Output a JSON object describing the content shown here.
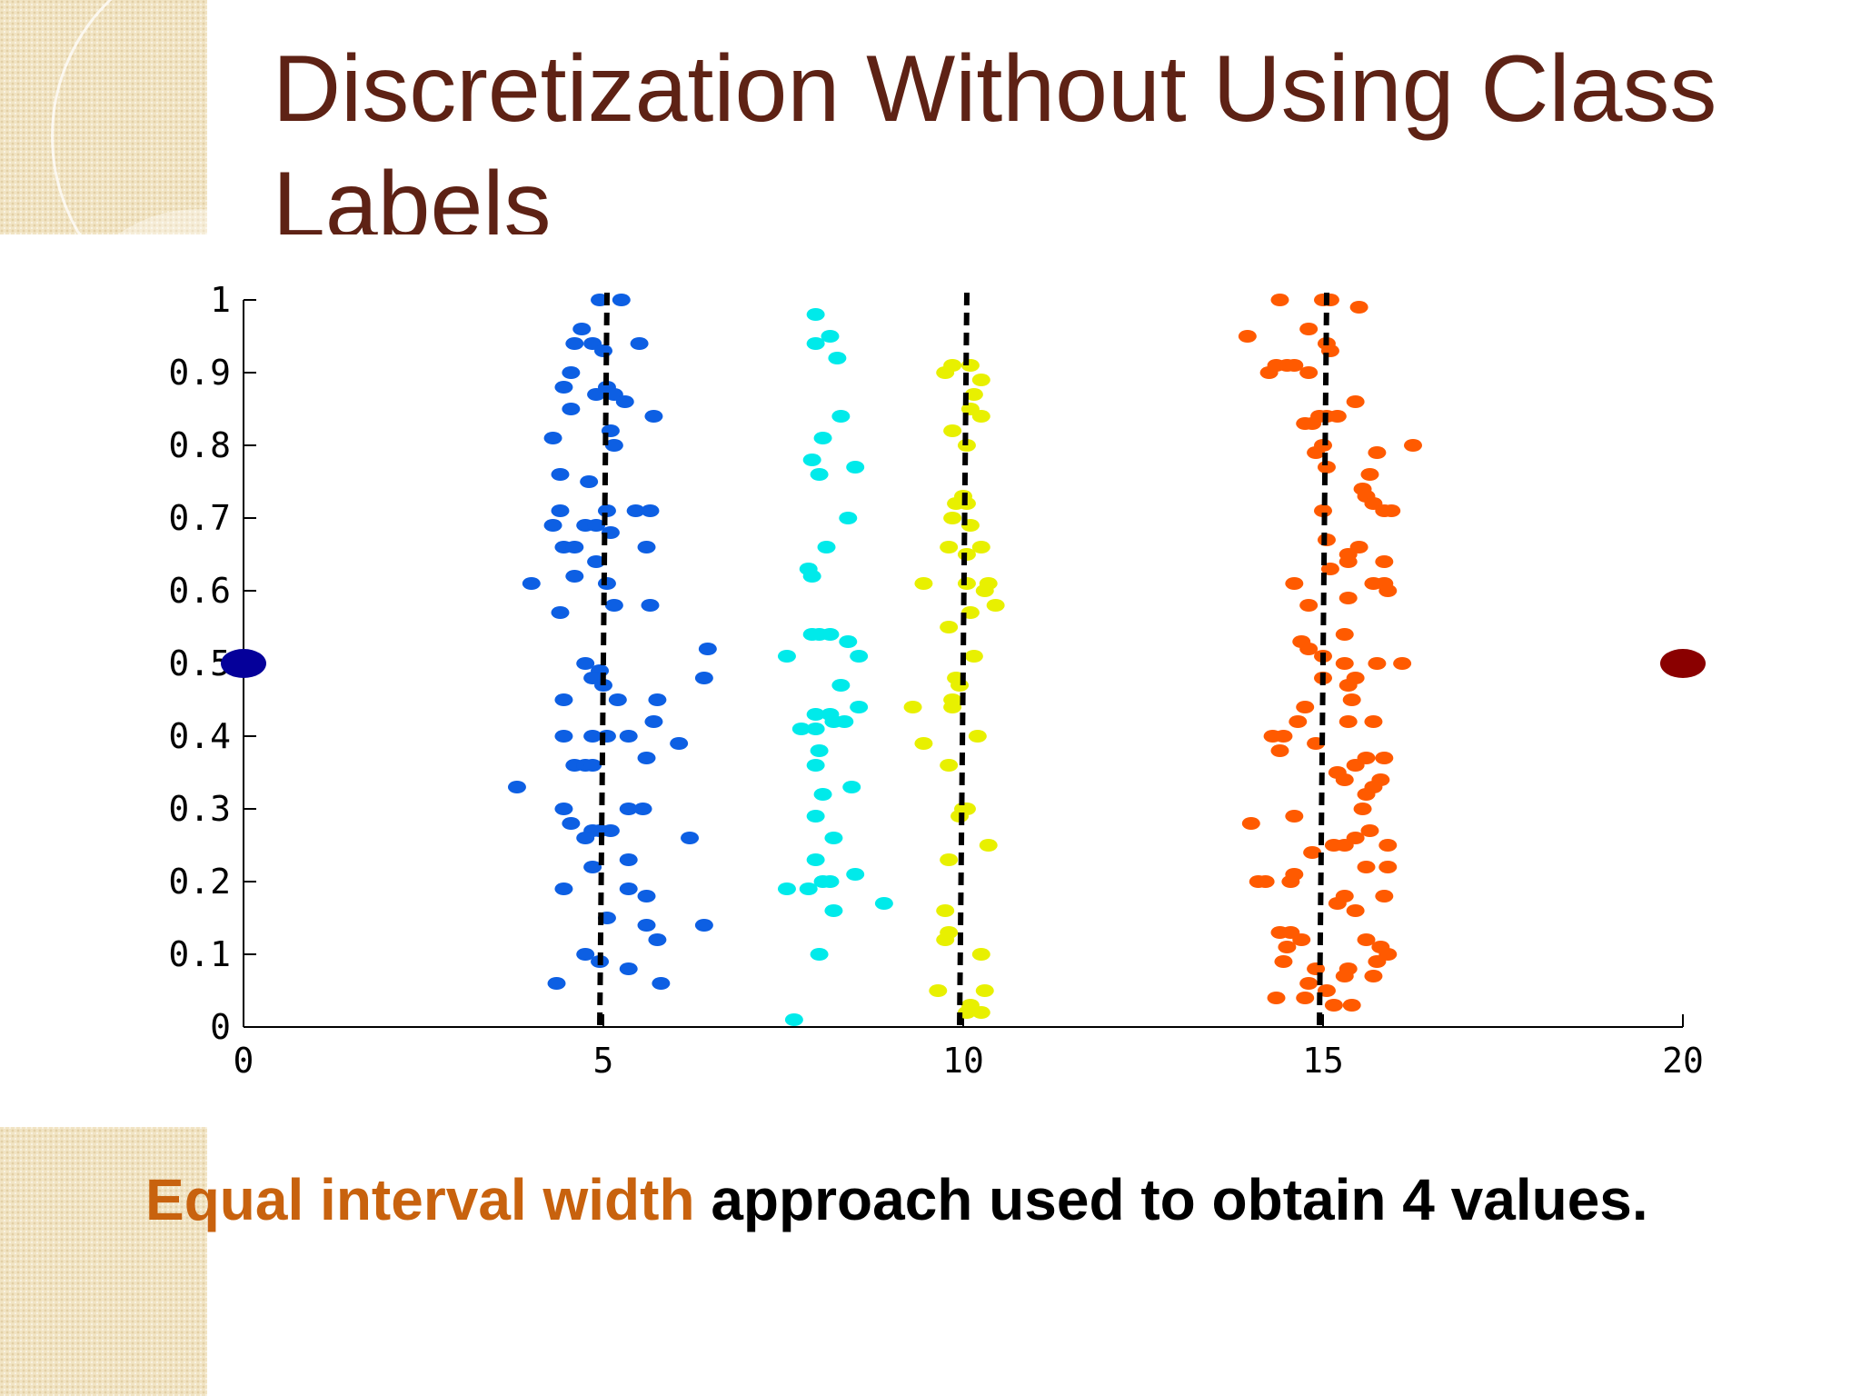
{
  "slide": {
    "title": "Discretization Without Using Class Labels",
    "caption_highlight": "Equal interval width",
    "caption_rest": " approach used to obtain 4 values."
  },
  "colors": {
    "title": "#5e2215",
    "highlight": "#c8620e",
    "cluster1": "#0d5fe3",
    "cluster2": "#00eaea",
    "cluster3": "#e8f000",
    "cluster4": "#ff5a00",
    "endpoint_left": "#05009a",
    "endpoint_right": "#8a0000"
  },
  "chart_data": {
    "type": "scatter",
    "title": "",
    "xlabel": "",
    "ylabel": "",
    "xlim": [
      0,
      20
    ],
    "ylim": [
      0,
      1
    ],
    "grid": false,
    "x_ticks": [
      0,
      5,
      10,
      15,
      20
    ],
    "y_ticks": [
      0,
      0.1,
      0.2,
      0.3,
      0.4,
      0.5,
      0.6,
      0.7,
      0.8,
      0.9,
      1
    ],
    "x_tick_labels": [
      "0",
      "5",
      "10",
      "15",
      "20"
    ],
    "y_tick_labels": [
      "0",
      "0.1",
      "0.2",
      "0.3",
      "0.4",
      "0.5",
      "0.6",
      "0.7",
      "0.8",
      "0.9",
      "1"
    ],
    "bin_boundaries": [
      5,
      10,
      15
    ],
    "endpoints": [
      {
        "x": 0,
        "y": 0.5,
        "color": "#05009a"
      },
      {
        "x": 20,
        "y": 0.5,
        "color": "#8a0000"
      }
    ],
    "series": [
      {
        "color": "#0d5fe3",
        "points": [
          [
            4.95,
            1.0
          ],
          [
            5.25,
            1.0
          ],
          [
            4.7,
            0.96
          ],
          [
            4.85,
            0.94
          ],
          [
            5.0,
            0.93
          ],
          [
            4.6,
            0.94
          ],
          [
            5.5,
            0.94
          ],
          [
            4.55,
            0.9
          ],
          [
            5.05,
            0.88
          ],
          [
            4.9,
            0.87
          ],
          [
            5.15,
            0.87
          ],
          [
            4.45,
            0.88
          ],
          [
            4.55,
            0.85
          ],
          [
            5.3,
            0.86
          ],
          [
            5.7,
            0.84
          ],
          [
            5.1,
            0.82
          ],
          [
            4.3,
            0.81
          ],
          [
            5.15,
            0.8
          ],
          [
            4.4,
            0.76
          ],
          [
            4.8,
            0.75
          ],
          [
            4.4,
            0.71
          ],
          [
            5.05,
            0.71
          ],
          [
            5.45,
            0.71
          ],
          [
            5.65,
            0.71
          ],
          [
            4.3,
            0.69
          ],
          [
            4.75,
            0.69
          ],
          [
            4.9,
            0.69
          ],
          [
            5.1,
            0.68
          ],
          [
            4.45,
            0.66
          ],
          [
            4.6,
            0.66
          ],
          [
            5.6,
            0.66
          ],
          [
            4.9,
            0.64
          ],
          [
            4.6,
            0.62
          ],
          [
            5.05,
            0.61
          ],
          [
            4.0,
            0.61
          ],
          [
            5.15,
            0.58
          ],
          [
            5.65,
            0.58
          ],
          [
            4.4,
            0.57
          ],
          [
            6.45,
            0.52
          ],
          [
            4.75,
            0.5
          ],
          [
            4.95,
            0.49
          ],
          [
            4.85,
            0.48
          ],
          [
            5.0,
            0.47
          ],
          [
            6.4,
            0.48
          ],
          [
            4.45,
            0.45
          ],
          [
            5.2,
            0.45
          ],
          [
            5.75,
            0.45
          ],
          [
            4.45,
            0.4
          ],
          [
            4.85,
            0.4
          ],
          [
            5.05,
            0.4
          ],
          [
            5.35,
            0.4
          ],
          [
            5.7,
            0.42
          ],
          [
            6.05,
            0.39
          ],
          [
            4.6,
            0.36
          ],
          [
            4.75,
            0.36
          ],
          [
            4.85,
            0.36
          ],
          [
            5.6,
            0.37
          ],
          [
            3.8,
            0.33
          ],
          [
            4.45,
            0.3
          ],
          [
            5.35,
            0.3
          ],
          [
            5.55,
            0.3
          ],
          [
            4.55,
            0.28
          ],
          [
            4.85,
            0.27
          ],
          [
            4.95,
            0.27
          ],
          [
            5.1,
            0.27
          ],
          [
            4.75,
            0.26
          ],
          [
            6.2,
            0.26
          ],
          [
            4.85,
            0.22
          ],
          [
            5.35,
            0.23
          ],
          [
            4.45,
            0.19
          ],
          [
            5.35,
            0.19
          ],
          [
            5.6,
            0.18
          ],
          [
            5.05,
            0.15
          ],
          [
            5.6,
            0.14
          ],
          [
            6.4,
            0.14
          ],
          [
            5.75,
            0.12
          ],
          [
            4.75,
            0.1
          ],
          [
            4.95,
            0.09
          ],
          [
            5.35,
            0.08
          ],
          [
            5.8,
            0.06
          ],
          [
            4.35,
            0.06
          ]
        ]
      },
      {
        "color": "#00eaea",
        "points": [
          [
            7.95,
            0.98
          ],
          [
            8.15,
            0.95
          ],
          [
            7.95,
            0.94
          ],
          [
            8.25,
            0.92
          ],
          [
            8.3,
            0.84
          ],
          [
            8.05,
            0.81
          ],
          [
            7.9,
            0.78
          ],
          [
            8.5,
            0.77
          ],
          [
            8.0,
            0.76
          ],
          [
            8.4,
            0.7
          ],
          [
            8.1,
            0.66
          ],
          [
            7.85,
            0.63
          ],
          [
            7.9,
            0.62
          ],
          [
            7.9,
            0.54
          ],
          [
            8.0,
            0.54
          ],
          [
            8.15,
            0.54
          ],
          [
            8.4,
            0.53
          ],
          [
            8.55,
            0.51
          ],
          [
            7.55,
            0.51
          ],
          [
            8.3,
            0.47
          ],
          [
            7.95,
            0.43
          ],
          [
            8.15,
            0.43
          ],
          [
            8.55,
            0.44
          ],
          [
            8.35,
            0.42
          ],
          [
            7.75,
            0.41
          ],
          [
            7.95,
            0.41
          ],
          [
            8.2,
            0.42
          ],
          [
            8.0,
            0.38
          ],
          [
            7.95,
            0.36
          ],
          [
            8.45,
            0.33
          ],
          [
            8.05,
            0.32
          ],
          [
            7.95,
            0.29
          ],
          [
            8.2,
            0.26
          ],
          [
            7.95,
            0.23
          ],
          [
            8.5,
            0.21
          ],
          [
            7.55,
            0.19
          ],
          [
            8.05,
            0.2
          ],
          [
            8.15,
            0.2
          ],
          [
            7.85,
            0.19
          ],
          [
            8.9,
            0.17
          ],
          [
            8.2,
            0.16
          ],
          [
            8.0,
            0.1
          ],
          [
            7.65,
            0.01
          ]
        ]
      },
      {
        "color": "#e8f000",
        "points": [
          [
            9.85,
            0.91
          ],
          [
            10.1,
            0.91
          ],
          [
            9.75,
            0.9
          ],
          [
            10.25,
            0.89
          ],
          [
            10.15,
            0.87
          ],
          [
            10.1,
            0.85
          ],
          [
            10.25,
            0.84
          ],
          [
            9.85,
            0.82
          ],
          [
            10.05,
            0.8
          ],
          [
            10.0,
            0.73
          ],
          [
            9.9,
            0.72
          ],
          [
            10.05,
            0.72
          ],
          [
            9.85,
            0.7
          ],
          [
            10.1,
            0.69
          ],
          [
            9.8,
            0.66
          ],
          [
            10.25,
            0.66
          ],
          [
            10.05,
            0.65
          ],
          [
            10.05,
            0.61
          ],
          [
            9.45,
            0.61
          ],
          [
            10.35,
            0.61
          ],
          [
            10.3,
            0.6
          ],
          [
            10.45,
            0.58
          ],
          [
            10.1,
            0.57
          ],
          [
            9.8,
            0.55
          ],
          [
            10.15,
            0.51
          ],
          [
            9.9,
            0.48
          ],
          [
            9.95,
            0.47
          ],
          [
            9.85,
            0.45
          ],
          [
            9.85,
            0.44
          ],
          [
            9.3,
            0.44
          ],
          [
            10.2,
            0.4
          ],
          [
            9.45,
            0.39
          ],
          [
            9.8,
            0.36
          ],
          [
            10.05,
            0.3
          ],
          [
            10.0,
            0.3
          ],
          [
            9.95,
            0.29
          ],
          [
            10.35,
            0.25
          ],
          [
            9.8,
            0.23
          ],
          [
            9.75,
            0.16
          ],
          [
            9.8,
            0.13
          ],
          [
            9.75,
            0.12
          ],
          [
            10.25,
            0.1
          ],
          [
            9.65,
            0.05
          ],
          [
            10.3,
            0.05
          ],
          [
            10.1,
            0.03
          ],
          [
            10.25,
            0.02
          ],
          [
            10.05,
            0.02
          ]
        ]
      },
      {
        "color": "#ff5a00",
        "points": [
          [
            14.4,
            1.0
          ],
          [
            15.0,
            1.0
          ],
          [
            15.1,
            1.0
          ],
          [
            15.5,
            0.99
          ],
          [
            14.8,
            0.96
          ],
          [
            13.95,
            0.95
          ],
          [
            15.05,
            0.94
          ],
          [
            15.1,
            0.93
          ],
          [
            14.5,
            0.91
          ],
          [
            14.6,
            0.91
          ],
          [
            14.25,
            0.9
          ],
          [
            14.8,
            0.9
          ],
          [
            14.35,
            0.91
          ],
          [
            15.45,
            0.86
          ],
          [
            14.95,
            0.84
          ],
          [
            15.05,
            0.84
          ],
          [
            15.2,
            0.84
          ],
          [
            14.75,
            0.83
          ],
          [
            14.85,
            0.83
          ],
          [
            15.0,
            0.8
          ],
          [
            14.9,
            0.79
          ],
          [
            15.05,
            0.77
          ],
          [
            16.25,
            0.8
          ],
          [
            15.75,
            0.79
          ],
          [
            15.65,
            0.76
          ],
          [
            15.55,
            0.74
          ],
          [
            15.6,
            0.73
          ],
          [
            15.7,
            0.72
          ],
          [
            15.85,
            0.71
          ],
          [
            15.0,
            0.71
          ],
          [
            15.95,
            0.71
          ],
          [
            15.05,
            0.67
          ],
          [
            15.5,
            0.66
          ],
          [
            15.35,
            0.64
          ],
          [
            15.35,
            0.65
          ],
          [
            15.85,
            0.64
          ],
          [
            15.1,
            0.63
          ],
          [
            15.7,
            0.61
          ],
          [
            14.6,
            0.61
          ],
          [
            15.85,
            0.61
          ],
          [
            15.9,
            0.6
          ],
          [
            15.35,
            0.59
          ],
          [
            14.8,
            0.58
          ],
          [
            15.3,
            0.54
          ],
          [
            14.7,
            0.53
          ],
          [
            14.8,
            0.52
          ],
          [
            15.0,
            0.51
          ],
          [
            15.3,
            0.5
          ],
          [
            15.75,
            0.5
          ],
          [
            16.1,
            0.5
          ],
          [
            15.0,
            0.48
          ],
          [
            15.45,
            0.48
          ],
          [
            15.35,
            0.47
          ],
          [
            15.4,
            0.45
          ],
          [
            14.75,
            0.44
          ],
          [
            15.35,
            0.42
          ],
          [
            14.65,
            0.42
          ],
          [
            15.7,
            0.42
          ],
          [
            15.6,
            0.37
          ],
          [
            15.85,
            0.37
          ],
          [
            15.45,
            0.36
          ],
          [
            15.2,
            0.35
          ],
          [
            15.3,
            0.34
          ],
          [
            14.45,
            0.4
          ],
          [
            14.3,
            0.4
          ],
          [
            14.9,
            0.39
          ],
          [
            14.4,
            0.38
          ],
          [
            15.8,
            0.34
          ],
          [
            15.7,
            0.33
          ],
          [
            15.6,
            0.32
          ],
          [
            14.0,
            0.28
          ],
          [
            14.6,
            0.29
          ],
          [
            15.55,
            0.3
          ],
          [
            15.45,
            0.26
          ],
          [
            15.15,
            0.25
          ],
          [
            15.3,
            0.25
          ],
          [
            15.65,
            0.27
          ],
          [
            15.9,
            0.25
          ],
          [
            14.85,
            0.24
          ],
          [
            15.6,
            0.22
          ],
          [
            15.9,
            0.22
          ],
          [
            14.6,
            0.21
          ],
          [
            14.55,
            0.2
          ],
          [
            14.1,
            0.2
          ],
          [
            14.2,
            0.2
          ],
          [
            15.3,
            0.18
          ],
          [
            15.85,
            0.18
          ],
          [
            15.2,
            0.17
          ],
          [
            15.45,
            0.16
          ],
          [
            14.55,
            0.13
          ],
          [
            14.7,
            0.12
          ],
          [
            14.4,
            0.13
          ],
          [
            14.5,
            0.11
          ],
          [
            15.6,
            0.12
          ],
          [
            15.8,
            0.11
          ],
          [
            15.9,
            0.1
          ],
          [
            15.75,
            0.09
          ],
          [
            14.9,
            0.08
          ],
          [
            14.45,
            0.09
          ],
          [
            15.35,
            0.08
          ],
          [
            14.8,
            0.06
          ],
          [
            15.7,
            0.07
          ],
          [
            15.05,
            0.05
          ],
          [
            15.3,
            0.07
          ],
          [
            14.35,
            0.04
          ],
          [
            14.75,
            0.04
          ],
          [
            15.15,
            0.03
          ],
          [
            15.4,
            0.03
          ]
        ]
      }
    ]
  }
}
